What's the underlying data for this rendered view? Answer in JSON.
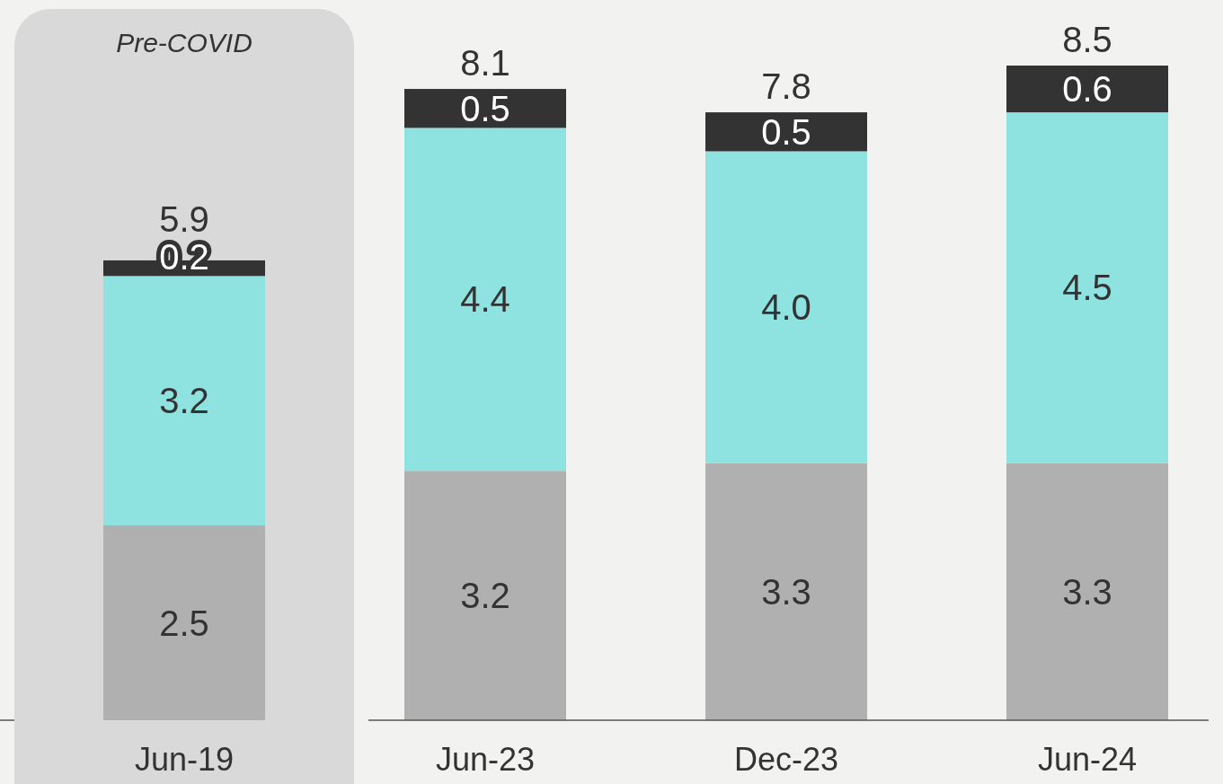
{
  "chart_data": {
    "type": "bar",
    "stacked": true,
    "categories": [
      "Jun-19",
      "Jun-23",
      "Dec-23",
      "Jun-24"
    ],
    "series": [
      {
        "color": "#b0b0b0",
        "values": [
          2.5,
          3.2,
          3.3,
          3.3
        ],
        "value_labels": [
          "2.5",
          "3.2",
          "3.3",
          "3.3"
        ]
      },
      {
        "color": "#8ee2e0",
        "values": [
          3.2,
          4.4,
          4.0,
          4.5
        ],
        "value_labels": [
          "3.2",
          "4.4",
          "4.0",
          "4.5"
        ]
      },
      {
        "color": "#333333",
        "values": [
          0.2,
          0.5,
          0.5,
          0.6
        ],
        "value_labels": [
          "0.2",
          "0.5",
          "0.5",
          "0.6"
        ]
      }
    ],
    "totals": [
      "5.9",
      "8.1",
      "7.8",
      "8.5"
    ],
    "bands": [
      {
        "axis": "x",
        "from": "Jun-19",
        "to": "Jun-19",
        "label": "Pre-COVID",
        "color": "#d9d9d9"
      }
    ]
  }
}
